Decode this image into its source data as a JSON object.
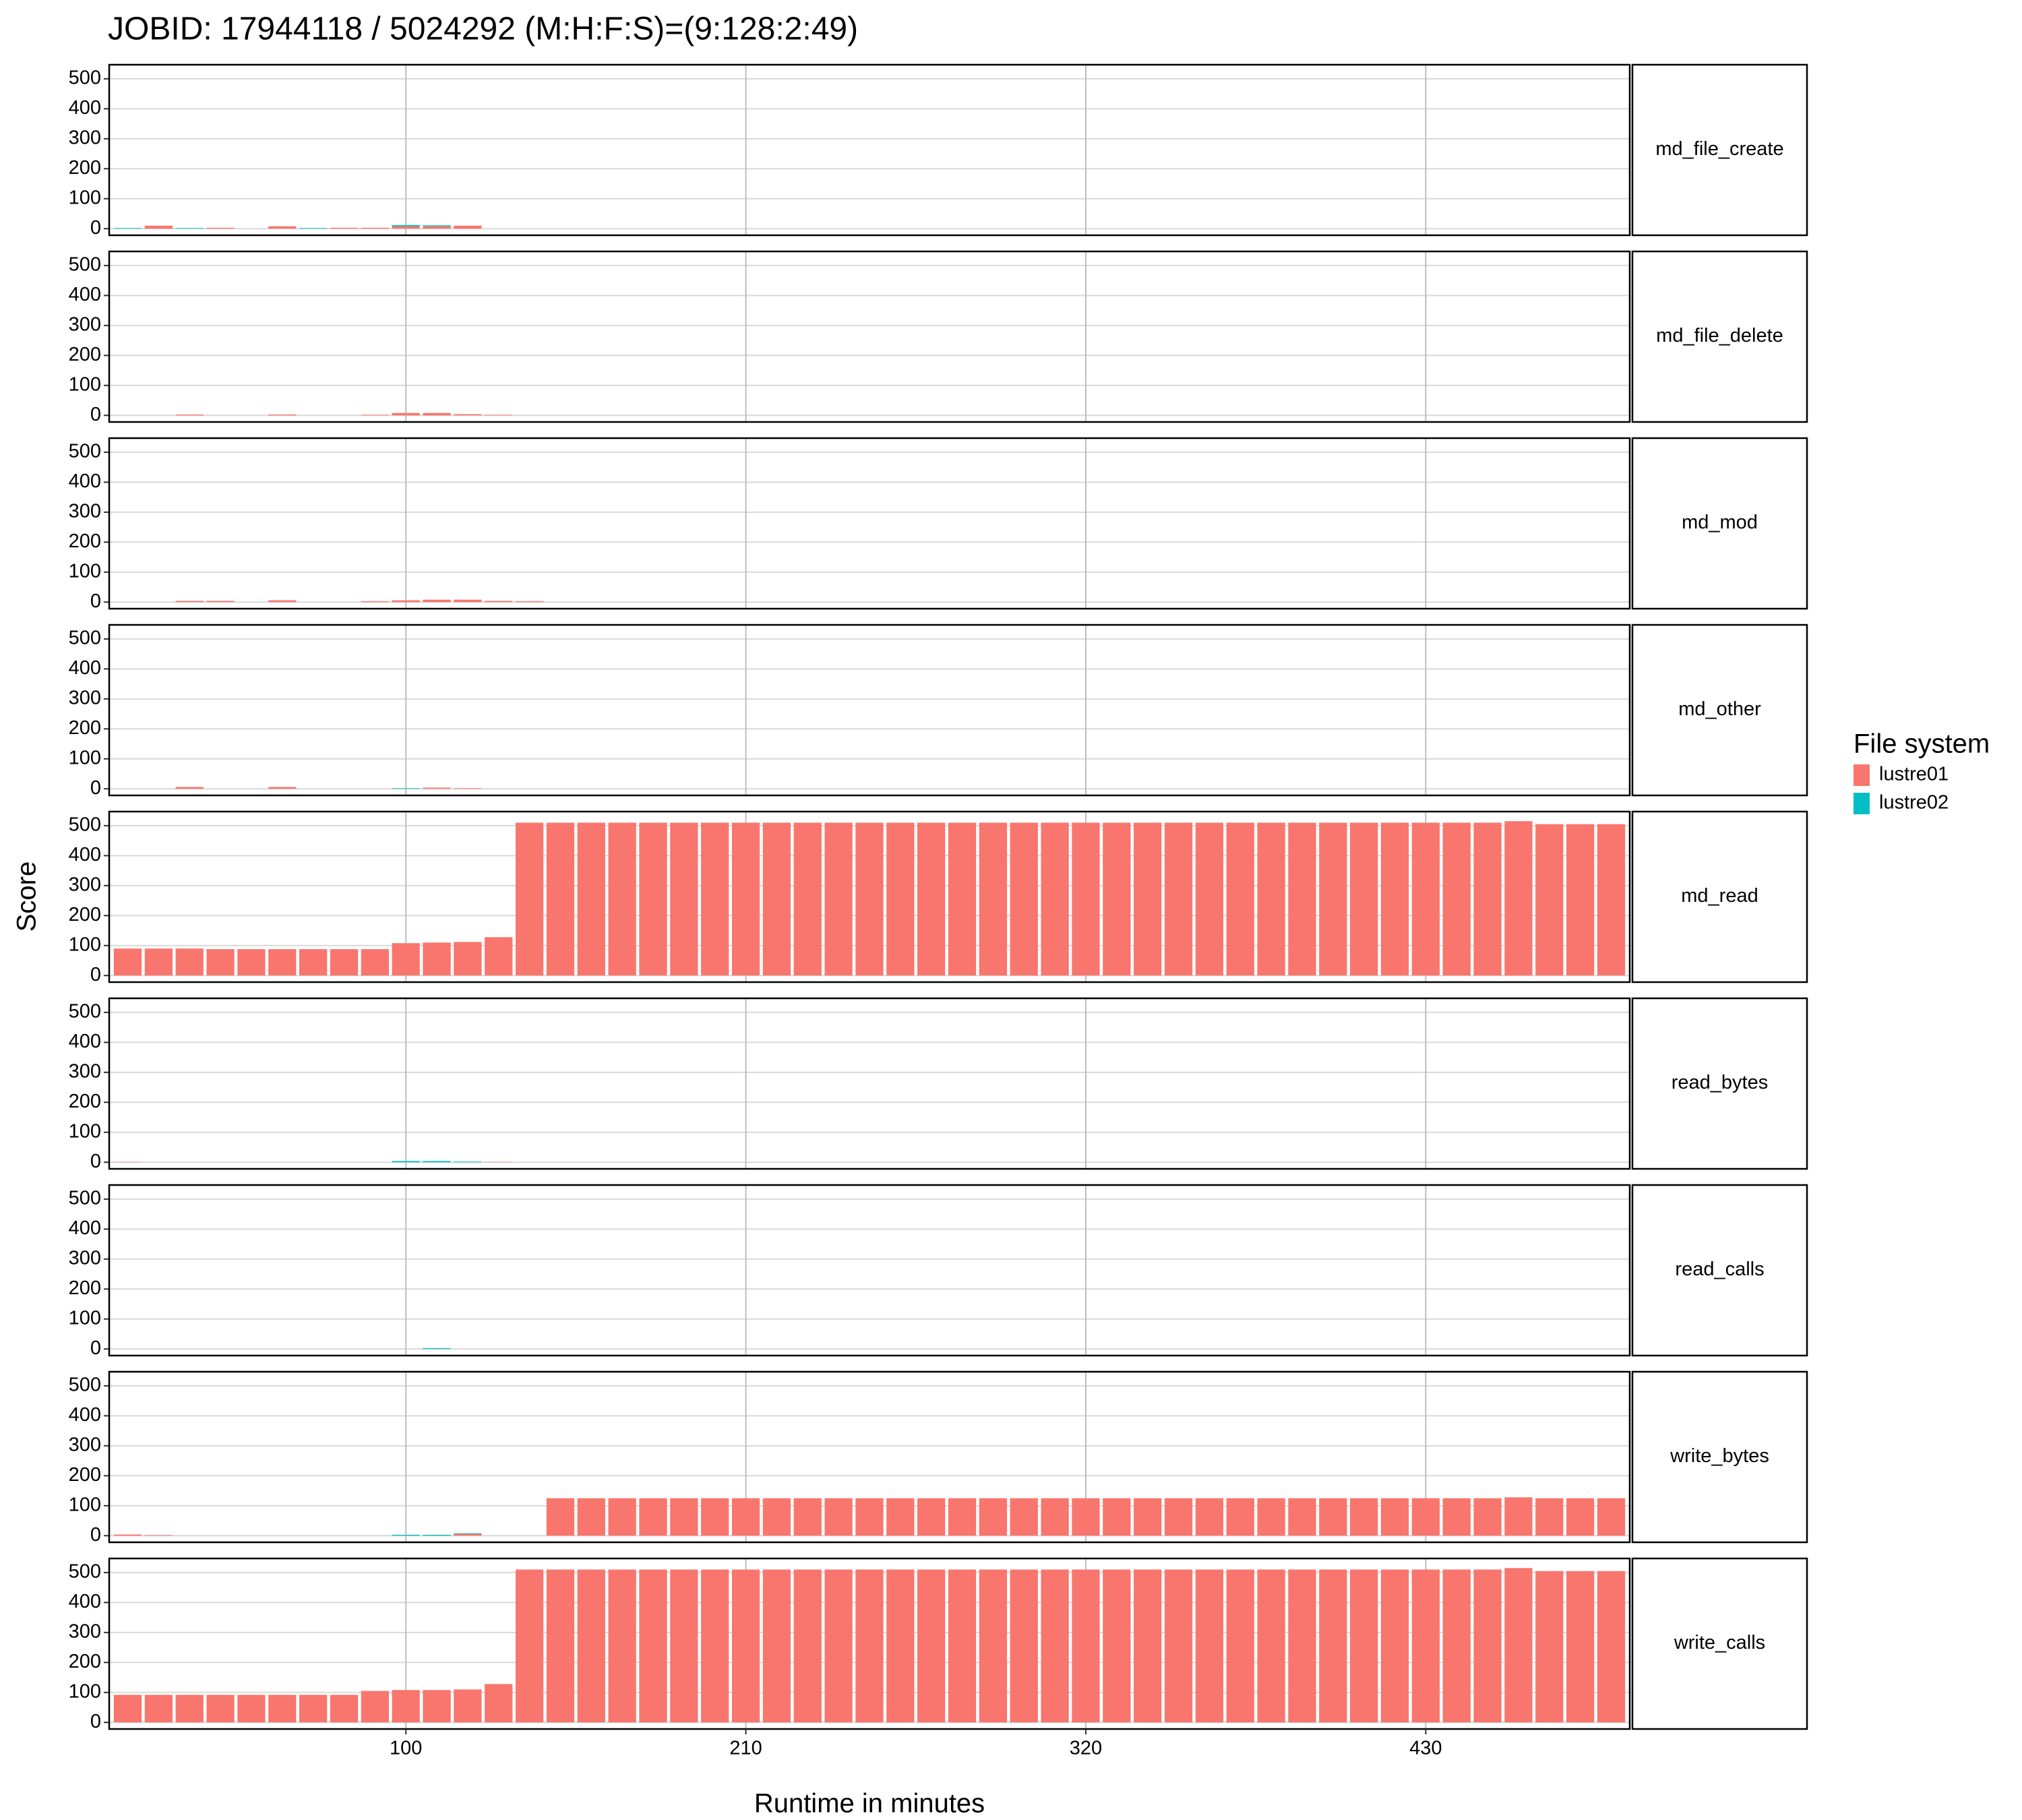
{
  "chart_data": {
    "type": "bar",
    "title": "JOBID: 17944118 / 5024292 (M:H:F:S)=(9:128:2:49)",
    "xlabel": "Runtime in minutes",
    "ylabel": "Score",
    "legend_title": "File system",
    "series": [
      {
        "name": "lustre01",
        "color": "#f8766d"
      },
      {
        "name": "lustre02",
        "color": "#00bfc4"
      }
    ],
    "x": [
      10,
      20,
      30,
      40,
      50,
      60,
      70,
      80,
      90,
      100,
      110,
      120,
      130,
      140,
      150,
      160,
      170,
      180,
      190,
      200,
      210,
      220,
      230,
      240,
      250,
      260,
      270,
      280,
      290,
      300,
      310,
      320,
      330,
      340,
      350,
      360,
      370,
      380,
      390,
      400,
      410,
      420,
      430,
      440,
      450,
      460,
      470,
      480,
      490
    ],
    "xlim": [
      4,
      496
    ],
    "xticks": [
      100,
      210,
      320,
      430
    ],
    "ylim": [
      -22,
      547
    ],
    "yticks": [
      0,
      100,
      200,
      300,
      400,
      500
    ],
    "grid": true,
    "facets": [
      {
        "label": "md_file_create",
        "values": [
          [
            0,
            10,
            0,
            3,
            0,
            8,
            0,
            3,
            3,
            8,
            8,
            10,
            0,
            0,
            0,
            0,
            0,
            0,
            0,
            0,
            0,
            0,
            0,
            0,
            0,
            0,
            0,
            0,
            0,
            0,
            0,
            0,
            0,
            0,
            0,
            0,
            0,
            0,
            0,
            0,
            0,
            0,
            0,
            0,
            0,
            0,
            0,
            0,
            0
          ],
          [
            2,
            0,
            2,
            0,
            0,
            0,
            2,
            0,
            0,
            4,
            3,
            0,
            0,
            0,
            0,
            0,
            0,
            0,
            0,
            0,
            0,
            0,
            0,
            0,
            0,
            0,
            0,
            0,
            0,
            0,
            0,
            0,
            0,
            0,
            0,
            0,
            0,
            0,
            0,
            0,
            0,
            0,
            0,
            0,
            0,
            0,
            0,
            0,
            0
          ]
        ]
      },
      {
        "label": "md_file_delete",
        "values": [
          [
            0,
            0,
            3,
            0,
            0,
            3,
            0,
            0,
            2,
            8,
            8,
            4,
            2,
            0,
            0,
            0,
            0,
            0,
            0,
            0,
            0,
            0,
            0,
            0,
            0,
            0,
            0,
            0,
            0,
            0,
            0,
            0,
            0,
            0,
            0,
            0,
            0,
            0,
            0,
            0,
            0,
            0,
            0,
            0,
            0,
            0,
            0,
            0,
            0
          ],
          [
            0,
            0,
            0,
            0,
            0,
            0,
            0,
            0,
            0,
            0,
            0,
            0,
            0,
            0,
            0,
            0,
            0,
            0,
            0,
            0,
            0,
            0,
            0,
            0,
            0,
            0,
            0,
            0,
            0,
            0,
            0,
            0,
            0,
            0,
            0,
            0,
            0,
            0,
            0,
            0,
            0,
            0,
            0,
            0,
            0,
            0,
            0,
            0,
            0
          ]
        ]
      },
      {
        "label": "md_mod",
        "values": [
          [
            0,
            0,
            4,
            4,
            0,
            6,
            0,
            0,
            3,
            6,
            8,
            8,
            4,
            3,
            0,
            0,
            0,
            0,
            0,
            0,
            0,
            0,
            0,
            0,
            0,
            0,
            0,
            0,
            0,
            0,
            0,
            0,
            0,
            0,
            0,
            0,
            0,
            0,
            0,
            0,
            0,
            0,
            0,
            0,
            0,
            0,
            0,
            0,
            0
          ],
          [
            0,
            0,
            0,
            0,
            0,
            0,
            0,
            0,
            0,
            0,
            0,
            0,
            0,
            0,
            0,
            0,
            0,
            0,
            0,
            0,
            0,
            0,
            0,
            0,
            0,
            0,
            0,
            0,
            0,
            0,
            0,
            0,
            0,
            0,
            0,
            0,
            0,
            0,
            0,
            0,
            0,
            0,
            0,
            0,
            0,
            0,
            0,
            0,
            0
          ]
        ]
      },
      {
        "label": "md_other",
        "values": [
          [
            0,
            0,
            6,
            0,
            0,
            6,
            0,
            0,
            0,
            0,
            4,
            2,
            0,
            0,
            0,
            0,
            0,
            0,
            0,
            0,
            0,
            0,
            0,
            0,
            0,
            0,
            0,
            0,
            0,
            0,
            0,
            0,
            0,
            0,
            0,
            0,
            0,
            0,
            0,
            0,
            0,
            0,
            0,
            0,
            0,
            0,
            0,
            0,
            0
          ],
          [
            0,
            0,
            0,
            0,
            0,
            0,
            0,
            0,
            0,
            2,
            0,
            0,
            0,
            0,
            0,
            0,
            0,
            0,
            0,
            0,
            0,
            0,
            0,
            0,
            0,
            0,
            0,
            0,
            0,
            0,
            0,
            0,
            0,
            0,
            0,
            0,
            0,
            0,
            0,
            0,
            0,
            0,
            0,
            0,
            0,
            0,
            0,
            0,
            0
          ]
        ]
      },
      {
        "label": "md_read",
        "values": [
          [
            90,
            90,
            90,
            88,
            88,
            88,
            88,
            88,
            88,
            108,
            110,
            112,
            128,
            510,
            510,
            510,
            510,
            510,
            510,
            510,
            510,
            510,
            510,
            510,
            510,
            510,
            510,
            510,
            510,
            510,
            510,
            510,
            510,
            510,
            510,
            510,
            510,
            510,
            510,
            510,
            510,
            510,
            510,
            510,
            510,
            515,
            505,
            505,
            505
          ],
          [
            0,
            0,
            0,
            0,
            0,
            0,
            0,
            0,
            0,
            0,
            0,
            0,
            0,
            0,
            0,
            0,
            0,
            0,
            0,
            0,
            0,
            0,
            0,
            0,
            0,
            0,
            0,
            0,
            0,
            0,
            0,
            0,
            0,
            0,
            0,
            0,
            0,
            0,
            0,
            0,
            0,
            0,
            0,
            0,
            0,
            0,
            0,
            0,
            0
          ]
        ]
      },
      {
        "label": "read_bytes",
        "values": [
          [
            1,
            0,
            0,
            0,
            0,
            0,
            0,
            0,
            0,
            0,
            0,
            0,
            1,
            0,
            0,
            0,
            0,
            0,
            0,
            0,
            0,
            0,
            0,
            0,
            0,
            0,
            0,
            0,
            0,
            0,
            0,
            0,
            0,
            0,
            0,
            0,
            0,
            0,
            0,
            0,
            0,
            0,
            0,
            0,
            0,
            0,
            0,
            0,
            0
          ],
          [
            0,
            0,
            0,
            0,
            0,
            0,
            0,
            0,
            0,
            4,
            4,
            2,
            0,
            0,
            0,
            0,
            0,
            0,
            0,
            0,
            0,
            0,
            0,
            0,
            0,
            0,
            0,
            0,
            0,
            0,
            0,
            0,
            0,
            0,
            0,
            0,
            0,
            0,
            0,
            0,
            0,
            0,
            0,
            0,
            0,
            0,
            0,
            0,
            0
          ]
        ]
      },
      {
        "label": "read_calls",
        "values": [
          [
            0,
            0,
            0,
            0,
            0,
            0,
            0,
            0,
            0,
            0,
            0,
            0,
            0,
            0,
            0,
            0,
            0,
            0,
            0,
            0,
            0,
            0,
            0,
            0,
            0,
            0,
            0,
            0,
            0,
            0,
            0,
            0,
            0,
            0,
            0,
            0,
            0,
            0,
            0,
            0,
            0,
            0,
            0,
            0,
            0,
            0,
            0,
            0,
            0
          ],
          [
            0,
            0,
            0,
            0,
            0,
            0,
            0,
            0,
            0,
            0,
            3,
            0,
            0,
            0,
            0,
            0,
            0,
            0,
            0,
            0,
            0,
            0,
            0,
            0,
            0,
            0,
            0,
            0,
            0,
            0,
            0,
            0,
            0,
            0,
            0,
            0,
            0,
            0,
            0,
            0,
            0,
            0,
            0,
            0,
            0,
            0,
            0,
            0,
            0
          ]
        ]
      },
      {
        "label": "write_bytes",
        "values": [
          [
            4,
            2,
            0,
            0,
            0,
            0,
            0,
            0,
            0,
            0,
            0,
            6,
            0,
            0,
            125,
            125,
            125,
            125,
            125,
            125,
            125,
            125,
            125,
            125,
            125,
            125,
            125,
            125,
            125,
            125,
            125,
            125,
            125,
            125,
            125,
            125,
            125,
            125,
            125,
            125,
            125,
            125,
            125,
            125,
            125,
            128,
            125,
            125,
            125
          ],
          [
            0,
            0,
            0,
            0,
            0,
            0,
            0,
            0,
            0,
            3,
            3,
            2,
            0,
            0,
            0,
            0,
            0,
            0,
            0,
            0,
            0,
            0,
            0,
            0,
            0,
            0,
            0,
            0,
            0,
            0,
            0,
            0,
            0,
            0,
            0,
            0,
            0,
            0,
            0,
            0,
            0,
            0,
            0,
            0,
            0,
            0,
            0,
            0,
            0
          ]
        ]
      },
      {
        "label": "write_calls",
        "values": [
          [
            92,
            92,
            92,
            92,
            92,
            92,
            92,
            92,
            105,
            108,
            108,
            110,
            128,
            510,
            510,
            510,
            510,
            510,
            510,
            510,
            510,
            510,
            510,
            510,
            510,
            510,
            510,
            510,
            510,
            510,
            510,
            510,
            510,
            510,
            510,
            510,
            510,
            510,
            510,
            510,
            510,
            510,
            510,
            510,
            510,
            515,
            505,
            505,
            505
          ],
          [
            0,
            0,
            0,
            0,
            0,
            0,
            0,
            0,
            0,
            0,
            0,
            0,
            0,
            0,
            0,
            0,
            0,
            0,
            0,
            0,
            0,
            0,
            0,
            0,
            0,
            0,
            0,
            0,
            0,
            0,
            0,
            0,
            0,
            0,
            0,
            0,
            0,
            0,
            0,
            0,
            0,
            0,
            0,
            0,
            0,
            0,
            0,
            0,
            0
          ]
        ]
      }
    ]
  }
}
